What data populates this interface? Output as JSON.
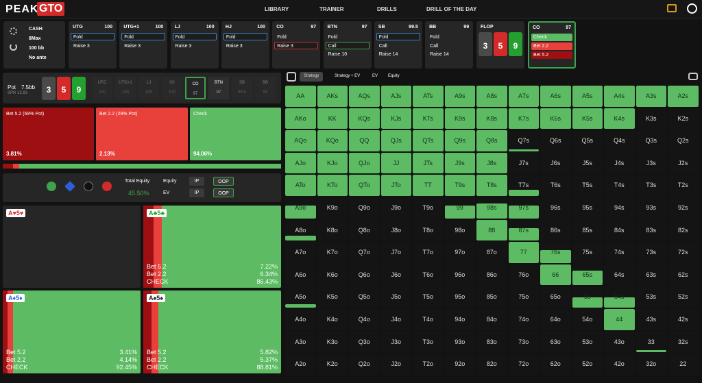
{
  "header": {
    "logo_left": "PEAK",
    "logo_right": "GTO",
    "nav": [
      "LIBRARY",
      "TRAINER",
      "DRILLS",
      "DRILL OF THE DAY"
    ]
  },
  "settings": [
    "CASH",
    "8Max",
    "100 bb",
    "No ante"
  ],
  "positions": [
    {
      "name": "UTG",
      "stack": 100,
      "actions": [
        "Fold",
        "Raise 3"
      ],
      "selected": 0
    },
    {
      "name": "UTG+1",
      "stack": 100,
      "actions": [
        "Fold",
        "Raise 3"
      ],
      "selected": 0
    },
    {
      "name": "LJ",
      "stack": 100,
      "actions": [
        "Fold",
        "Raise 3"
      ],
      "selected": 0
    },
    {
      "name": "HJ",
      "stack": 100,
      "actions": [
        "Fold",
        "Raise 3"
      ],
      "selected": 0
    },
    {
      "name": "CO",
      "stack": 97,
      "actions": [
        "Fold",
        "Raise 3"
      ],
      "selected": 1
    },
    {
      "name": "BTN",
      "stack": 97,
      "actions": [
        "Fold",
        "Call",
        "Raise 10"
      ],
      "selected": 1
    },
    {
      "name": "SB",
      "stack": 99.5,
      "actions": [
        "Fold",
        "Call",
        "Raise 14"
      ],
      "selected": 0
    },
    {
      "name": "BB",
      "stack": 99,
      "actions": [
        "Fold",
        "Call",
        "Raise 14"
      ]
    }
  ],
  "flop": {
    "name": "FLOP",
    "cards": [
      {
        "rank": "3",
        "color": "#4a4a4a"
      },
      {
        "rank": "5",
        "color": "#d42a2a"
      },
      {
        "rank": "9",
        "color": "#23a02f"
      }
    ]
  },
  "current": {
    "name": "CO",
    "stack": 97,
    "actions": [
      {
        "label": "Check",
        "color": "#5dbb63"
      },
      {
        "label": "Bet 2.2",
        "color": "#e8413c"
      },
      {
        "label": "Bet 5.2",
        "color": "#9e0f12"
      }
    ]
  },
  "pot": {
    "label": "Pot",
    "value": "7.5bb",
    "spr": "SPR 12.93"
  },
  "seats": [
    {
      "name": "UTG",
      "stack": 100
    },
    {
      "name": "UTG+1",
      "stack": 100
    },
    {
      "name": "LJ",
      "stack": 100
    },
    {
      "name": "HJ",
      "stack": 100
    },
    {
      "name": "CO",
      "stack": 97,
      "active": true
    },
    {
      "name": "BTN",
      "stack": 97
    },
    {
      "name": "SB",
      "stack": 99.5
    },
    {
      "name": "BB",
      "stack": 99
    }
  ],
  "strategy": [
    {
      "label": "Bet 5.2 (69% Pot)",
      "freq": {
        "value": 3.81,
        "label": "3.81%"
      },
      "color": "#9e0f12"
    },
    {
      "label": "Bet 2.2 (29% Pot)",
      "freq": {
        "value": 2.13,
        "label": "2.13%"
      },
      "color": "#e8413c"
    },
    {
      "label": "Check",
      "freq": {
        "value": 94.06,
        "label": "94.06%"
      },
      "color": "#5dbb63"
    }
  ],
  "equity": {
    "title": "Total Equity",
    "value": "45.50%",
    "rows": [
      {
        "label": "Equity",
        "options": [
          "IP",
          "OOP"
        ],
        "selected": 1
      },
      {
        "label": "EV",
        "options": [
          "IP",
          "OOP"
        ],
        "selected": 1
      }
    ]
  },
  "combos": [
    {
      "hand": "A♥5♥",
      "suit_color": "#d42a2a",
      "actions": []
    },
    {
      "hand": "A♣5♣",
      "suit_color": "#23a02f",
      "actions": [
        {
          "label": "Bet 5.2",
          "freq": {
            "value": 7.22,
            "label": "7.22%"
          },
          "color": "#9e0f12"
        },
        {
          "label": "Bet 2.2",
          "freq": {
            "value": 6.34,
            "label": "6.34%"
          },
          "color": "#e8413c"
        },
        {
          "label": "CHECK",
          "freq": {
            "value": 86.43,
            "label": "86.43%"
          },
          "color": "#5dbb63"
        }
      ]
    },
    {
      "hand": "A♦5♦",
      "suit_color": "#2b5fd9",
      "actions": [
        {
          "label": "Bet 5.2",
          "freq": {
            "value": 3.41,
            "label": "3.41%"
          },
          "color": "#9e0f12"
        },
        {
          "label": "Bet 2.2",
          "freq": {
            "value": 4.14,
            "label": "4.14%"
          },
          "color": "#e8413c"
        },
        {
          "label": "CHECK",
          "freq": {
            "value": 92.45,
            "label": "92.45%"
          },
          "color": "#5dbb63"
        }
      ]
    },
    {
      "hand": "A♠5♠",
      "suit_color": "#222222",
      "actions": [
        {
          "label": "Bet 5.2",
          "freq": {
            "value": 5.82,
            "label": "5.82%"
          },
          "color": "#9e0f12"
        },
        {
          "label": "Bet 2.2",
          "freq": {
            "value": 5.37,
            "label": "5.37%"
          },
          "color": "#e8413c"
        },
        {
          "label": "CHECK",
          "freq": {
            "value": 88.81,
            "label": "88.81%"
          },
          "color": "#5dbb63"
        }
      ]
    }
  ],
  "tabs": [
    "Strategy",
    "Strategy + EV",
    "EV",
    "Equity"
  ],
  "selected_tab": 0,
  "grid": {
    "rows": [
      {
        "hands": [
          "AA",
          "AKs",
          "AQs",
          "AJs",
          "ATs",
          "A9s",
          "A8s",
          "A7s",
          "A6s",
          "A5s",
          "A4s",
          "A3s",
          "A2s"
        ],
        "weights": [
          1,
          1,
          1,
          1,
          1,
          1,
          1,
          1,
          1,
          1,
          1,
          1,
          1
        ]
      },
      {
        "hands": [
          "AKo",
          "KK",
          "KQs",
          "KJs",
          "KTs",
          "K9s",
          "K8s",
          "K7s",
          "K6s",
          "K5s",
          "K4s",
          "K3s",
          "K2s"
        ],
        "weights": [
          1,
          1,
          1,
          1,
          1,
          1,
          1,
          1,
          1,
          1,
          1,
          0,
          0
        ]
      },
      {
        "hands": [
          "AQo",
          "KQo",
          "QQ",
          "QJs",
          "QTs",
          "Q9s",
          "Q8s",
          "Q7s",
          "Q6s",
          "Q5s",
          "Q4s",
          "Q3s",
          "Q2s"
        ],
        "weights": [
          1,
          1,
          1,
          1,
          1,
          1,
          1,
          0.1,
          0,
          0,
          0,
          0,
          0
        ]
      },
      {
        "hands": [
          "AJo",
          "KJo",
          "QJo",
          "JJ",
          "JTs",
          "J9s",
          "J8s",
          "J7s",
          "J6s",
          "J5s",
          "J4s",
          "J3s",
          "J2s"
        ],
        "weights": [
          1,
          1,
          1,
          1,
          1,
          1,
          1,
          0,
          0,
          0,
          0,
          0,
          0
        ]
      },
      {
        "hands": [
          "ATo",
          "KTo",
          "QTo",
          "JTo",
          "TT",
          "T9s",
          "T8s",
          "T7s",
          "T6s",
          "T5s",
          "T4s",
          "T3s",
          "T2s"
        ],
        "weights": [
          1,
          1,
          1,
          1,
          1,
          1,
          1,
          0.3,
          0,
          0,
          0,
          0,
          0
        ]
      },
      {
        "hands": [
          "A9o",
          "K9o",
          "Q9o",
          "J9o",
          "T9o",
          "99",
          "98s",
          "97s",
          "96s",
          "95s",
          "94s",
          "93s",
          "92s"
        ],
        "weights": [
          0.6,
          0,
          0,
          0,
          0,
          0.6,
          0.7,
          0.6,
          0,
          0,
          0,
          0,
          0
        ]
      },
      {
        "hands": [
          "A8o",
          "K8o",
          "Q8o",
          "J8o",
          "T8o",
          "98o",
          "88",
          "87s",
          "86s",
          "85s",
          "84s",
          "83s",
          "82s"
        ],
        "weights": [
          0.25,
          0,
          0,
          0,
          0,
          0,
          1,
          0.6,
          0,
          0,
          0,
          0,
          0
        ]
      },
      {
        "hands": [
          "A7o",
          "K7o",
          "Q7o",
          "J7o",
          "T7o",
          "97o",
          "87o",
          "77",
          "76s",
          "75s",
          "74s",
          "73s",
          "72s"
        ],
        "weights": [
          0,
          0,
          0,
          0,
          0,
          0,
          0,
          1,
          0.6,
          0,
          0,
          0,
          0
        ]
      },
      {
        "hands": [
          "A6o",
          "K6o",
          "Q6o",
          "J6o",
          "T6o",
          "96o",
          "86o",
          "76o",
          "66",
          "65s",
          "64s",
          "63s",
          "62s"
        ],
        "weights": [
          0,
          0,
          0,
          0,
          0,
          0,
          0,
          0,
          1,
          0.7,
          0,
          0,
          0
        ]
      },
      {
        "hands": [
          "A5o",
          "K5o",
          "Q5o",
          "J5o",
          "T5o",
          "95o",
          "85o",
          "75o",
          "65o",
          "55",
          "54s",
          "53s",
          "52s"
        ],
        "weights": [
          0.15,
          0,
          0,
          0,
          0,
          0,
          0,
          0,
          0,
          0.5,
          0.5,
          0,
          0
        ]
      },
      {
        "hands": [
          "A4o",
          "K4o",
          "Q4o",
          "J4o",
          "T4o",
          "94o",
          "84o",
          "74o",
          "64o",
          "54o",
          "44",
          "43s",
          "42s"
        ],
        "weights": [
          0,
          0,
          0,
          0,
          0,
          0,
          0,
          0,
          0,
          0,
          1,
          0,
          0
        ]
      },
      {
        "hands": [
          "A3o",
          "K3o",
          "Q3o",
          "J3o",
          "T3o",
          "93o",
          "83o",
          "73o",
          "63o",
          "53o",
          "43o",
          "33",
          "32s"
        ],
        "weights": [
          0,
          0,
          0,
          0,
          0,
          0,
          0,
          0,
          0,
          0,
          0,
          0.1,
          0
        ]
      },
      {
        "hands": [
          "A2o",
          "K2o",
          "Q2o",
          "J2o",
          "T2o",
          "92o",
          "82o",
          "72o",
          "62o",
          "52o",
          "42o",
          "32o",
          "22"
        ],
        "weights": [
          0,
          0,
          0,
          0,
          0,
          0,
          0,
          0,
          0,
          0,
          0,
          0,
          0
        ]
      }
    ]
  }
}
